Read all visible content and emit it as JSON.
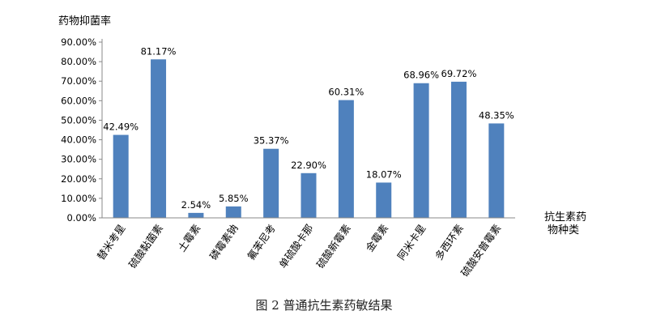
{
  "chart_data": {
    "type": "bar",
    "ylabel": "药物抑菌率",
    "xlabel": "抗生素药物种类",
    "xlabel_lines": [
      "抗生素药",
      "物种类"
    ],
    "categories": [
      "替米考星",
      "硫酸黏菌素",
      "土霉素",
      "磷霉素钠",
      "氟苯尼考",
      "单硫酸卡那",
      "硫酸新霉素",
      "金霉素",
      "阿米卡星",
      "多西环素",
      "硫酸安普霉素"
    ],
    "values": [
      42.49,
      81.17,
      2.54,
      5.85,
      35.37,
      22.9,
      60.31,
      18.07,
      68.96,
      69.72,
      48.35
    ],
    "value_labels": [
      "42.49%",
      "81.17%",
      "2.54%",
      "5.85%",
      "35.37%",
      "22.90%",
      "60.31%",
      "18.07%",
      "68.96%",
      "69.72%",
      "48.35%"
    ],
    "y_ticks": [
      "0.00%",
      "10.00%",
      "20.00%",
      "30.00%",
      "40.00%",
      "50.00%",
      "60.00%",
      "70.00%",
      "80.00%",
      "90.00%"
    ],
    "ylim": [
      0,
      90
    ],
    "grid": false,
    "bar_color": "#4f81bd"
  },
  "caption": "图 2  普通抗生素药敏结果"
}
